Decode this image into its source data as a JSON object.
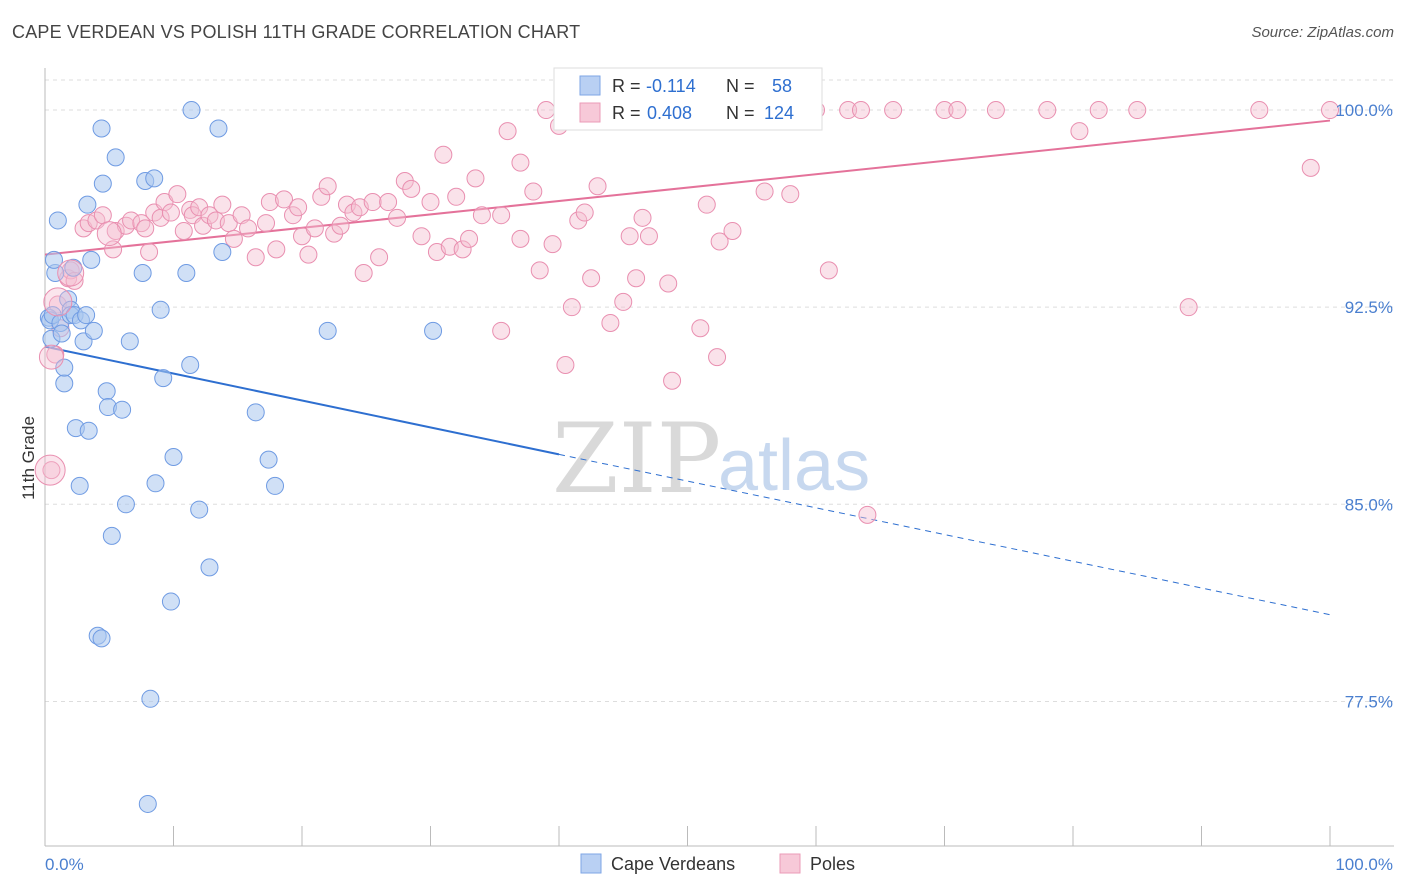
{
  "title": "CAPE VERDEAN VS POLISH 11TH GRADE CORRELATION CHART",
  "source": "Source: ZipAtlas.com",
  "watermark": {
    "zip": "ZIP",
    "atlas": "atlas"
  },
  "colors": {
    "blue": "#5b8fe0",
    "blue_fill": "#aac6ef",
    "pink": "#e4729a",
    "pink_fill": "#f5bfd1",
    "tick_text": "#4a7fcf",
    "grid": "#dddddd"
  },
  "legend": {
    "rows": [
      {
        "r_label": "R = ",
        "r_value": "-0.114",
        "n_label": "N = ",
        "n_value": "58"
      },
      {
        "r_label": "R = ",
        "r_value": "0.408",
        "n_label": "N = ",
        "n_value": "124"
      }
    ]
  },
  "bottom_legend": [
    {
      "label": "Cape Verdeans"
    },
    {
      "label": "Poles"
    }
  ],
  "chart_data": {
    "type": "scatter",
    "title": "CAPE VERDEAN VS POLISH 11TH GRADE CORRELATION CHART",
    "xlabel": "",
    "ylabel": "11th Grade",
    "xlim": [
      0,
      100
    ],
    "ylim": [
      72.0,
      101.6
    ],
    "x_tick_labels": [
      "0.0%",
      "100.0%"
    ],
    "y_ticks": [
      77.5,
      85.0,
      92.5,
      100.0
    ],
    "y_tick_labels": [
      "77.5%",
      "85.0%",
      "92.5%",
      "100.0%"
    ],
    "grid": true,
    "legend_position": "top-center",
    "series": [
      {
        "name": "Cape Verdeans",
        "color": "#5b8fe0",
        "r": -0.114,
        "n": 58,
        "trend": {
          "x0": 0,
          "y0": 91.0,
          "x1": 40,
          "y1": 86.9,
          "dashed_to_x": 100,
          "dashed_to_y": 80.8
        },
        "points": [
          [
            0.3,
            92.1
          ],
          [
            0.5,
            91.3
          ],
          [
            0.4,
            92.0
          ],
          [
            0.6,
            92.2
          ],
          [
            0.8,
            93.8
          ],
          [
            0.7,
            94.3
          ],
          [
            1.0,
            95.8
          ],
          [
            1.2,
            91.9
          ],
          [
            1.3,
            91.5
          ],
          [
            1.5,
            89.6
          ],
          [
            1.5,
            90.2
          ],
          [
            1.8,
            92.8
          ],
          [
            2.0,
            92.4
          ],
          [
            2.0,
            92.2
          ],
          [
            2.2,
            94.0
          ],
          [
            2.3,
            92.2
          ],
          [
            2.4,
            87.9
          ],
          [
            2.7,
            85.7
          ],
          [
            2.8,
            92.0
          ],
          [
            3.0,
            91.2
          ],
          [
            3.2,
            92.2
          ],
          [
            3.3,
            96.4
          ],
          [
            3.4,
            87.8
          ],
          [
            3.6,
            94.3
          ],
          [
            3.8,
            91.6
          ],
          [
            4.1,
            80.0
          ],
          [
            4.4,
            79.9
          ],
          [
            4.5,
            97.2
          ],
          [
            4.4,
            99.3
          ],
          [
            4.8,
            89.3
          ],
          [
            4.9,
            88.7
          ],
          [
            5.2,
            83.8
          ],
          [
            5.5,
            98.2
          ],
          [
            6.0,
            88.6
          ],
          [
            6.3,
            85.0
          ],
          [
            6.6,
            91.2
          ],
          [
            7.6,
            93.8
          ],
          [
            7.8,
            97.3
          ],
          [
            8.2,
            77.6
          ],
          [
            8.5,
            97.4
          ],
          [
            8.6,
            85.8
          ],
          [
            8.0,
            73.6
          ],
          [
            9.0,
            92.4
          ],
          [
            9.2,
            89.8
          ],
          [
            9.8,
            81.3
          ],
          [
            10.0,
            86.8
          ],
          [
            11.0,
            93.8
          ],
          [
            11.3,
            90.3
          ],
          [
            11.4,
            100.0
          ],
          [
            12.0,
            84.8
          ],
          [
            12.8,
            82.6
          ],
          [
            13.5,
            99.3
          ],
          [
            13.8,
            94.6
          ],
          [
            16.4,
            88.5
          ],
          [
            17.4,
            86.7
          ],
          [
            17.9,
            85.7
          ],
          [
            22.0,
            91.6
          ],
          [
            30.2,
            91.6
          ]
        ]
      },
      {
        "name": "Poles",
        "color": "#e4729a",
        "r": 0.408,
        "n": 124,
        "trend": {
          "x0": 0,
          "y0": 94.5,
          "x1": 100,
          "y1": 99.6
        },
        "points": [
          [
            0.5,
            86.3
          ],
          [
            0.8,
            90.7
          ],
          [
            1.0,
            92.6
          ],
          [
            1.2,
            91.7
          ],
          [
            1.8,
            93.6
          ],
          [
            2.0,
            93.9
          ],
          [
            2.3,
            93.5
          ],
          [
            3.0,
            95.5
          ],
          [
            3.4,
            95.7
          ],
          [
            4.0,
            95.8
          ],
          [
            4.5,
            96.0
          ],
          [
            5.3,
            94.7
          ],
          [
            5.5,
            95.4
          ],
          [
            6.3,
            95.6
          ],
          [
            6.7,
            95.8
          ],
          [
            7.5,
            95.7
          ],
          [
            7.8,
            95.5
          ],
          [
            8.1,
            94.6
          ],
          [
            8.5,
            96.1
          ],
          [
            9.0,
            95.9
          ],
          [
            9.3,
            96.5
          ],
          [
            9.8,
            96.1
          ],
          [
            10.3,
            96.8
          ],
          [
            10.8,
            95.4
          ],
          [
            11.3,
            96.2
          ],
          [
            11.5,
            96.0
          ],
          [
            12.0,
            96.3
          ],
          [
            12.3,
            95.6
          ],
          [
            12.8,
            96.0
          ],
          [
            13.3,
            95.8
          ],
          [
            13.8,
            96.4
          ],
          [
            14.3,
            95.7
          ],
          [
            14.7,
            95.1
          ],
          [
            15.3,
            96.0
          ],
          [
            15.8,
            95.5
          ],
          [
            16.4,
            94.4
          ],
          [
            17.2,
            95.7
          ],
          [
            17.5,
            96.5
          ],
          [
            18.0,
            94.7
          ],
          [
            18.6,
            96.6
          ],
          [
            19.3,
            96.0
          ],
          [
            19.7,
            96.3
          ],
          [
            20.0,
            95.2
          ],
          [
            20.5,
            94.5
          ],
          [
            21.0,
            95.5
          ],
          [
            21.5,
            96.7
          ],
          [
            22.0,
            97.1
          ],
          [
            22.5,
            95.3
          ],
          [
            23.0,
            95.6
          ],
          [
            23.5,
            96.4
          ],
          [
            24.0,
            96.1
          ],
          [
            24.5,
            96.3
          ],
          [
            24.8,
            93.8
          ],
          [
            25.5,
            96.5
          ],
          [
            26.0,
            94.4
          ],
          [
            26.7,
            96.5
          ],
          [
            27.4,
            95.9
          ],
          [
            28.0,
            97.3
          ],
          [
            28.5,
            97.0
          ],
          [
            29.3,
            95.2
          ],
          [
            30.0,
            96.5
          ],
          [
            30.5,
            94.6
          ],
          [
            31.0,
            98.3
          ],
          [
            31.5,
            94.8
          ],
          [
            32.0,
            96.7
          ],
          [
            32.5,
            94.7
          ],
          [
            33.0,
            95.1
          ],
          [
            33.5,
            97.4
          ],
          [
            34.0,
            96.0
          ],
          [
            35.5,
            91.6
          ],
          [
            35.5,
            96.0
          ],
          [
            36.0,
            99.2
          ],
          [
            37.0,
            95.1
          ],
          [
            37.0,
            98.0
          ],
          [
            38.0,
            96.9
          ],
          [
            38.5,
            93.9
          ],
          [
            39.0,
            100.0
          ],
          [
            39.5,
            94.9
          ],
          [
            40.0,
            99.4
          ],
          [
            41.5,
            95.8
          ],
          [
            42.0,
            96.1
          ],
          [
            42.5,
            93.6
          ],
          [
            43.0,
            97.1
          ],
          [
            44.0,
            91.9
          ],
          [
            45.0,
            92.7
          ],
          [
            45.5,
            95.2
          ],
          [
            46.0,
            93.6
          ],
          [
            46.5,
            95.9
          ],
          [
            47.0,
            95.2
          ],
          [
            47.5,
            100.0
          ],
          [
            48.5,
            93.4
          ],
          [
            50.0,
            100.0
          ],
          [
            51.0,
            91.7
          ],
          [
            51.5,
            96.4
          ],
          [
            52.0,
            100.0
          ],
          [
            52.5,
            95.0
          ],
          [
            53.5,
            95.4
          ],
          [
            55.0,
            100.0
          ],
          [
            55.5,
            100.0
          ],
          [
            56.0,
            96.9
          ],
          [
            57.0,
            100.0
          ],
          [
            58.0,
            96.8
          ],
          [
            59.0,
            100.0
          ],
          [
            60.0,
            100.0
          ],
          [
            61.0,
            93.9
          ],
          [
            62.5,
            100.0
          ],
          [
            63.5,
            100.0
          ],
          [
            64.0,
            84.6
          ],
          [
            66.0,
            100.0
          ],
          [
            70.0,
            100.0
          ],
          [
            71.0,
            100.0
          ],
          [
            74.0,
            100.0
          ],
          [
            78.0,
            100.0
          ],
          [
            80.5,
            99.2
          ],
          [
            82.0,
            100.0
          ],
          [
            85.0,
            100.0
          ],
          [
            89.0,
            92.5
          ],
          [
            94.5,
            100.0
          ],
          [
            98.5,
            97.8
          ],
          [
            100.0,
            100.0
          ],
          [
            41.0,
            92.5
          ],
          [
            40.5,
            90.3
          ],
          [
            52.3,
            90.6
          ],
          [
            48.8,
            89.7
          ]
        ]
      }
    ]
  }
}
